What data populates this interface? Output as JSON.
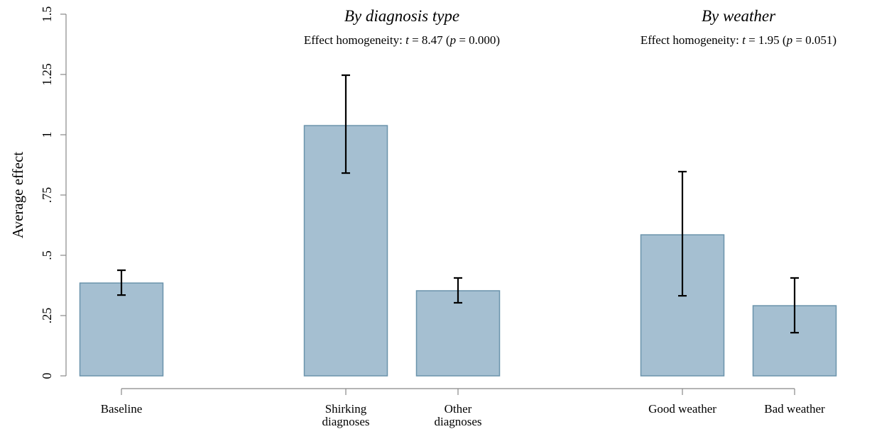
{
  "chart_data": {
    "type": "bar",
    "y_label": "Average effect",
    "categories": [
      [
        "Baseline"
      ],
      [
        "Shirking",
        "diagnoses"
      ],
      [
        "Other",
        "diagnoses"
      ],
      [
        "Good weather"
      ],
      [
        "Bad weather"
      ]
    ],
    "series": [
      {
        "color": "#a5bfd1",
        "edge_color": "#6a93ab",
        "values": [
          0.385,
          1.038,
          0.353,
          0.585,
          0.291
        ],
        "ci_low": [
          0.335,
          0.841,
          0.303,
          0.332,
          0.179
        ],
        "ci_high": [
          0.438,
          1.247,
          0.406,
          0.847,
          0.406
        ]
      }
    ],
    "groups": [
      {
        "title": "By diagnosis type",
        "stat": [
          "Effect homogeneity: ",
          "t",
          " = 8.47 (",
          "p",
          " = 0.000)"
        ]
      },
      {
        "title": "By weather",
        "stat": [
          "Effect homogeneity: ",
          "t",
          " = 1.95 (",
          "p",
          " = 0.051)"
        ]
      }
    ],
    "ylim": [
      0,
      1.5
    ],
    "yticks": [
      0,
      {
        "value": 0.25,
        "label": ".25"
      },
      {
        "value": 0.5,
        "label": ".5"
      },
      {
        "value": 0.75,
        "label": ".75"
      },
      1,
      1.25,
      1.5
    ]
  }
}
